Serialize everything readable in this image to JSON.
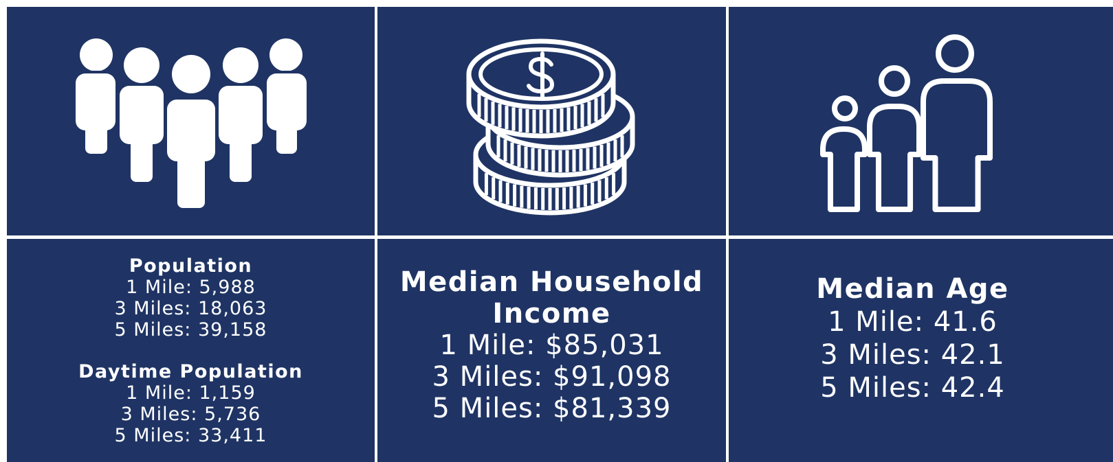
{
  "cards": [
    {
      "sections": [
        {
          "title": "Population",
          "lines": [
            "1 Mile: 5,988",
            "3 Miles: 18,063",
            "5 Miles: 39,158"
          ]
        },
        {
          "title": "Daytime Population",
          "lines": [
            "1 Mile: 1,159",
            "3 Miles: 5,736",
            "5 Miles: 33,411"
          ]
        }
      ]
    },
    {
      "sections": [
        {
          "title": "Median Household Income",
          "lines": [
            "1 Mile: $85,031",
            "3 Miles: $91,098",
            "5 Miles: $81,339"
          ]
        }
      ]
    },
    {
      "sections": [
        {
          "title": "Median Age",
          "lines": [
            "1 Mile: 41.6",
            "3 Miles: 42.1",
            "5 Miles: 42.4"
          ]
        }
      ]
    }
  ]
}
